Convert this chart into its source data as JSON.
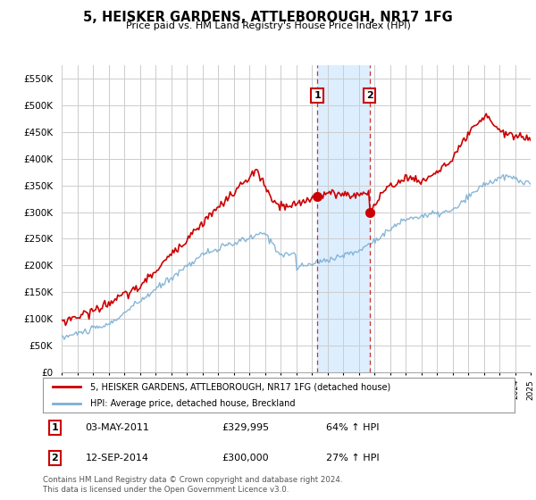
{
  "title": "5, HEISKER GARDENS, ATTLEBOROUGH, NR17 1FG",
  "subtitle": "Price paid vs. HM Land Registry's House Price Index (HPI)",
  "ylabel_ticks": [
    "£0",
    "£50K",
    "£100K",
    "£150K",
    "£200K",
    "£250K",
    "£300K",
    "£350K",
    "£400K",
    "£450K",
    "£500K",
    "£550K"
  ],
  "ytick_values": [
    0,
    50000,
    100000,
    150000,
    200000,
    250000,
    300000,
    350000,
    400000,
    450000,
    500000,
    550000
  ],
  "ylim": [
    0,
    575000
  ],
  "xlim": [
    1995,
    2025
  ],
  "sale1_year": 2011.35,
  "sale1_price": 329995,
  "sale1_label": "1",
  "sale1_date": "03-MAY-2011",
  "sale1_pct": "64% ↑ HPI",
  "sale2_year": 2014.7,
  "sale2_price": 300000,
  "sale2_label": "2",
  "sale2_date": "12-SEP-2014",
  "sale2_pct": "27% ↑ HPI",
  "red_line_color": "#cc0000",
  "blue_line_color": "#7bafd4",
  "highlight_fill": "#ddeeff",
  "grid_color": "#cccccc",
  "background_color": "#ffffff",
  "legend_label_red": "5, HEISKER GARDENS, ATTLEBOROUGH, NR17 1FG (detached house)",
  "legend_label_blue": "HPI: Average price, detached house, Breckland",
  "footer": "Contains HM Land Registry data © Crown copyright and database right 2024.\nThis data is licensed under the Open Government Licence v3.0."
}
